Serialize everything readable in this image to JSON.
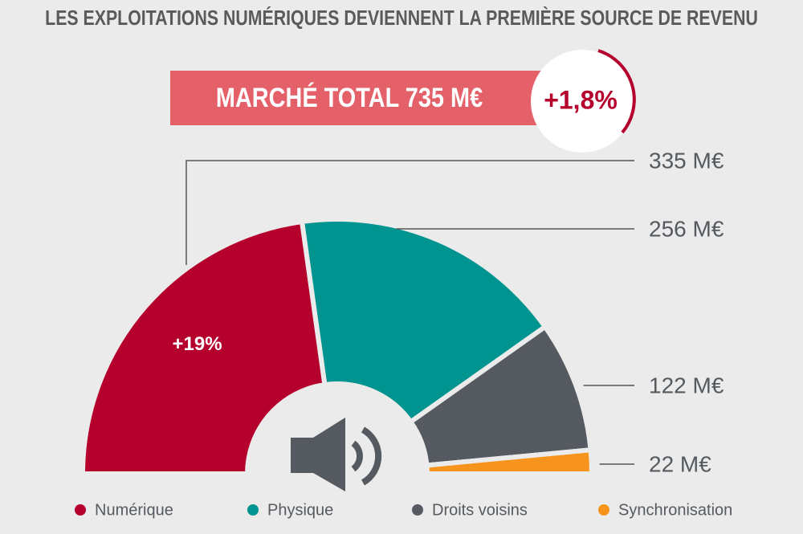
{
  "chart_data": {
    "type": "pie",
    "shape": "half-donut",
    "title": "LES EXPLOITATIONS NUMÉRIQUES DEVIENNENT LA PREMIÈRE SOURCE DE REVENU",
    "total_label": "MARCHÉ TOTAL 735 M€",
    "change_label": "+1,8%",
    "annotation": "+19%",
    "categories": [
      "Numérique",
      "Physique",
      "Droits voisins",
      "Synchronisation"
    ],
    "values": [
      335,
      256,
      122,
      22
    ],
    "value_labels": [
      "335 M€",
      "256 M€",
      "122 M€",
      "22 M€"
    ],
    "colors": [
      "#b5002d",
      "#009490",
      "#555a60",
      "#f7941d"
    ],
    "legend": "bottom"
  }
}
